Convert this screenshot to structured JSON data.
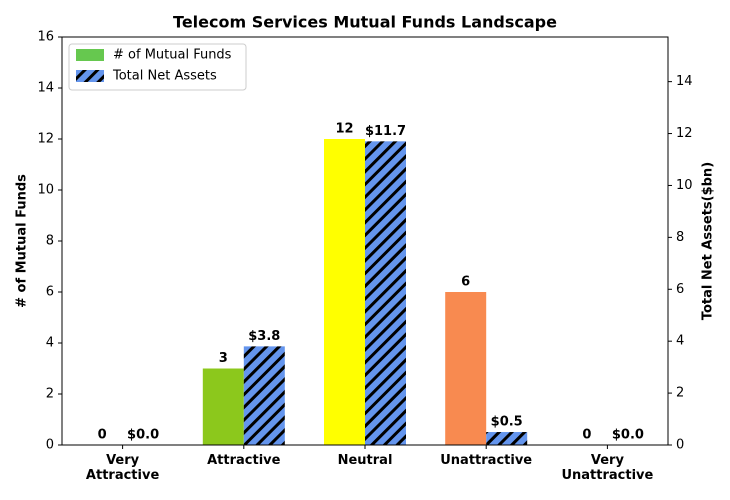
{
  "chart_data": {
    "type": "bar",
    "title": "Telecom Services Mutual Funds Landscape",
    "categories": [
      "Very\nAttractive",
      "Attractive",
      "Neutral",
      "Unattractive",
      "Very\nUnattractive"
    ],
    "series": [
      {
        "name": "# of Mutual Funds",
        "color": "#66c84f",
        "colors": [
          "#1a9641",
          "#8cc81c",
          "#ffff00",
          "#f88a50",
          "#d7191c"
        ],
        "values": [
          0,
          3,
          12,
          6,
          0
        ]
      },
      {
        "name": "Total Net Assets",
        "color": "#6495ed",
        "hatch": true,
        "axis": "y2",
        "values": [
          0,
          3.8,
          11.7,
          0.5,
          0
        ],
        "value_labels": [
          "$0.0",
          "$3.8",
          "$11.7",
          "$0.5",
          "$0.0"
        ]
      }
    ],
    "ylabel": "# of Mutual Funds",
    "y2label": "Total Net Assets($bn)",
    "ylim": [
      0,
      16
    ],
    "yticks": [
      0,
      2,
      4,
      6,
      8,
      10,
      12,
      14,
      16
    ],
    "y2lim": [
      0,
      15.72
    ],
    "y2ticks": [
      0,
      2,
      4,
      6,
      8,
      10,
      12,
      14
    ],
    "legend": "upper left"
  }
}
